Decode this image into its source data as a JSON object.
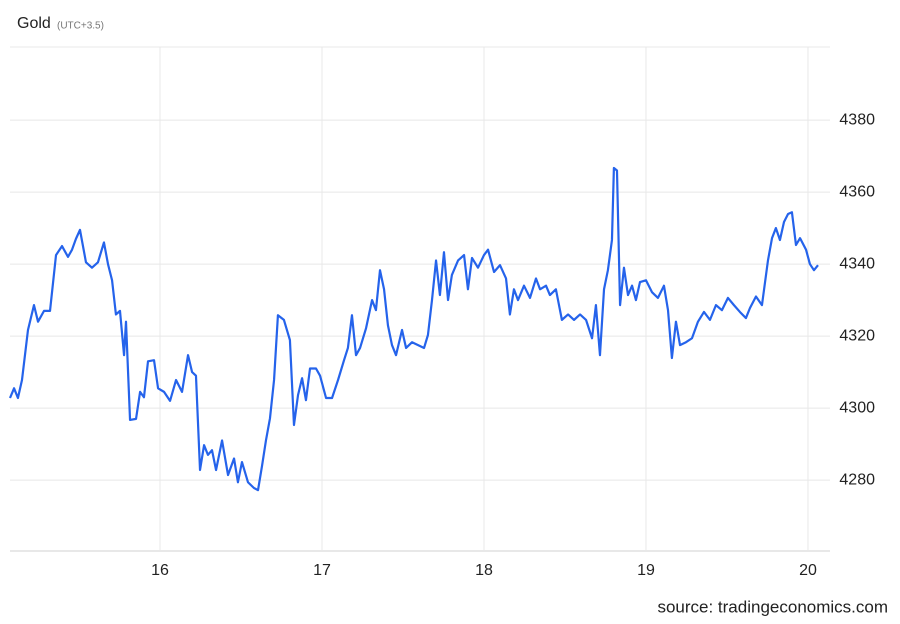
{
  "chart_data": {
    "type": "line",
    "title": "Gold",
    "subtitle": "(UTC+3.5)",
    "source": "source: tradingeconomics.com",
    "x": [
      15.074,
      15.099,
      15.123,
      15.148,
      15.185,
      15.222,
      15.247,
      15.284,
      15.321,
      15.358,
      15.395,
      15.432,
      15.457,
      15.481,
      15.506,
      15.543,
      15.58,
      15.617,
      15.654,
      15.679,
      15.704,
      15.728,
      15.753,
      15.778,
      15.79,
      15.815,
      15.852,
      15.877,
      15.901,
      15.926,
      15.963,
      15.988,
      16.025,
      16.062,
      16.099,
      16.136,
      16.173,
      16.198,
      16.222,
      16.247,
      16.272,
      16.296,
      16.321,
      16.346,
      16.383,
      16.42,
      16.457,
      16.481,
      16.506,
      16.543,
      16.58,
      16.605,
      16.63,
      16.654,
      16.679,
      16.704,
      16.728,
      16.765,
      16.802,
      16.827,
      16.852,
      16.877,
      16.901,
      16.926,
      16.963,
      16.988,
      17.025,
      17.062,
      17.099,
      17.136,
      17.16,
      17.185,
      17.21,
      17.235,
      17.272,
      17.309,
      17.333,
      17.358,
      17.383,
      17.407,
      17.432,
      17.457,
      17.494,
      17.519,
      17.556,
      17.593,
      17.63,
      17.654,
      17.679,
      17.704,
      17.728,
      17.753,
      17.778,
      17.802,
      17.84,
      17.877,
      17.901,
      17.926,
      17.963,
      18.0,
      18.025,
      18.062,
      18.099,
      18.136,
      18.16,
      18.185,
      18.21,
      18.247,
      18.284,
      18.321,
      18.346,
      18.383,
      18.407,
      18.444,
      18.481,
      18.519,
      18.556,
      18.593,
      18.63,
      18.667,
      18.691,
      18.716,
      18.741,
      18.765,
      18.79,
      18.802,
      18.821,
      18.84,
      18.864,
      18.889,
      18.914,
      18.938,
      18.963,
      19.0,
      19.037,
      19.074,
      19.111,
      19.136,
      19.16,
      19.185,
      19.21,
      19.247,
      19.284,
      19.321,
      19.358,
      19.395,
      19.432,
      19.469,
      19.506,
      19.543,
      19.58,
      19.617,
      19.642,
      19.679,
      19.716,
      19.753,
      19.778,
      19.802,
      19.827,
      19.852,
      19.877,
      19.901,
      19.926,
      19.951,
      19.988,
      20.012,
      20.037,
      20.062
    ],
    "series": [
      {
        "name": "Gold",
        "color": "#2563eb",
        "values": [
          4302.8,
          4305.5,
          4302.8,
          4307.8,
          4321.7,
          4328.6,
          4324.0,
          4327.0,
          4327.0,
          4342.5,
          4345.0,
          4342.0,
          4344.0,
          4347.0,
          4349.5,
          4340.5,
          4339.0,
          4340.5,
          4346.0,
          4340.0,
          4335.5,
          4326.0,
          4327.0,
          4314.7,
          4324.0,
          4296.7,
          4297.0,
          4304.5,
          4303.0,
          4313.0,
          4313.3,
          4305.5,
          4304.5,
          4302.0,
          4307.8,
          4304.5,
          4314.7,
          4310.0,
          4309.0,
          4282.8,
          4289.7,
          4287.0,
          4288.3,
          4282.8,
          4291.0,
          4281.4,
          4286.0,
          4279.4,
          4285.0,
          4279.4,
          4277.8,
          4277.2,
          4284.0,
          4291.0,
          4297.2,
          4307.8,
          4325.8,
          4324.5,
          4318.9,
          4295.3,
          4303.6,
          4308.3,
          4302.2,
          4311.0,
          4311.0,
          4309.0,
          4302.8,
          4302.8,
          4307.8,
          4313.3,
          4316.7,
          4325.8,
          4314.7,
          4316.7,
          4322.2,
          4330.0,
          4327.2,
          4338.3,
          4333.0,
          4323.0,
          4317.5,
          4314.7,
          4321.7,
          4316.7,
          4318.3,
          4317.5,
          4316.7,
          4320.3,
          4330.0,
          4341.0,
          4331.4,
          4343.3,
          4330.0,
          4337.0,
          4341.0,
          4342.5,
          4333.0,
          4341.7,
          4339.0,
          4342.5,
          4344.0,
          4337.8,
          4339.7,
          4336.0,
          4326.0,
          4333.0,
          4330.0,
          4334.0,
          4330.6,
          4336.0,
          4333.0,
          4334.0,
          4331.4,
          4333.0,
          4324.5,
          4326.0,
          4324.5,
          4326.0,
          4324.5,
          4319.4,
          4328.6,
          4314.7,
          4333.0,
          4338.3,
          4346.7,
          4366.7,
          4366.0,
          4328.6,
          4339.0,
          4331.4,
          4334.0,
          4330.0,
          4335.0,
          4335.5,
          4332.2,
          4330.6,
          4334.0,
          4327.2,
          4313.9,
          4324.0,
          4317.5,
          4318.3,
          4319.4,
          4324.0,
          4326.7,
          4324.5,
          4328.6,
          4327.2,
          4330.6,
          4328.6,
          4326.7,
          4325.0,
          4327.8,
          4331.0,
          4328.6,
          4341.0,
          4347.2,
          4350.0,
          4346.7,
          4351.7,
          4353.9,
          4354.4,
          4345.3,
          4347.2,
          4344.0,
          4340.0,
          4338.3,
          4339.7
        ]
      }
    ],
    "xlim": [
      15.074,
      20.136
    ],
    "xticks": [
      16,
      17,
      18,
      19,
      20
    ],
    "ylim": [
      4260.3,
      4400.3
    ],
    "yticks": [
      4280,
      4300,
      4320,
      4340,
      4360,
      4380
    ],
    "grid": true
  }
}
